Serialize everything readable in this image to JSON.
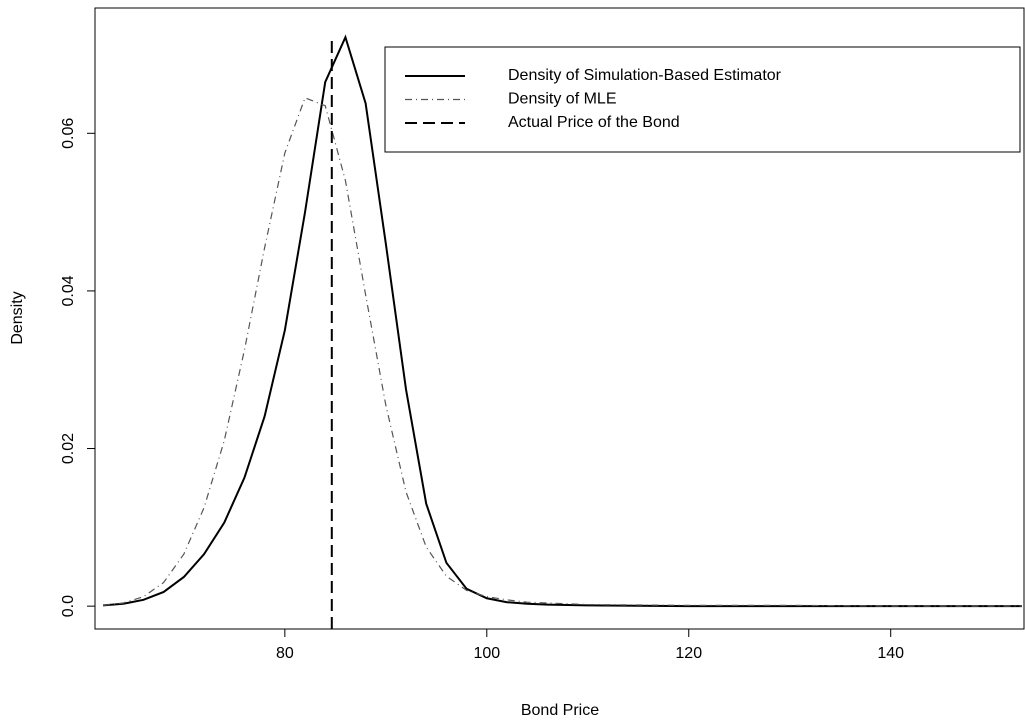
{
  "chart_data": {
    "type": "line",
    "x_label": "Bond Price",
    "y_label": "Density",
    "x": [
      62,
      64,
      66,
      68,
      70,
      72,
      74,
      76,
      78,
      80,
      82,
      84,
      86,
      88,
      90,
      92,
      94,
      96,
      98,
      100,
      102,
      104,
      106,
      110,
      120,
      130,
      140,
      153
    ],
    "series": [
      {
        "name": "Density of Simulation-Based Estimator",
        "color": "#000000",
        "dash": "solid",
        "values": [
          0.0001,
          0.0003,
          0.0008,
          0.0018,
          0.0037,
          0.0066,
          0.0106,
          0.0163,
          0.0241,
          0.035,
          0.05,
          0.0665,
          0.0722,
          0.0638,
          0.046,
          0.0275,
          0.013,
          0.0055,
          0.0022,
          0.001,
          0.0005,
          0.0003,
          0.0002,
          0.0001,
          0,
          0,
          0,
          0
        ]
      },
      {
        "name": "Density of MLE",
        "color": "#555555",
        "dash": "dashdot",
        "values": [
          0.0001,
          0.0004,
          0.0012,
          0.003,
          0.0066,
          0.0125,
          0.021,
          0.0325,
          0.0455,
          0.0575,
          0.0645,
          0.0635,
          0.054,
          0.0395,
          0.0255,
          0.0145,
          0.0075,
          0.0038,
          0.002,
          0.0012,
          0.0008,
          0.0005,
          0.0004,
          0.0002,
          0.0001,
          0.0001,
          0,
          0
        ]
      }
    ],
    "vline": {
      "name": "Actual Price of the Bond",
      "x": 84.65,
      "color": "#000000"
    },
    "xlim": [
      61.2,
      153.2
    ],
    "ylim": [
      -0.0029,
      0.0759
    ],
    "xticks": [
      80,
      100,
      120,
      140
    ],
    "yticks": [
      {
        "value": 0,
        "label": "0.0"
      },
      0.02,
      0.04,
      0.06
    ],
    "legend": "top-right"
  }
}
